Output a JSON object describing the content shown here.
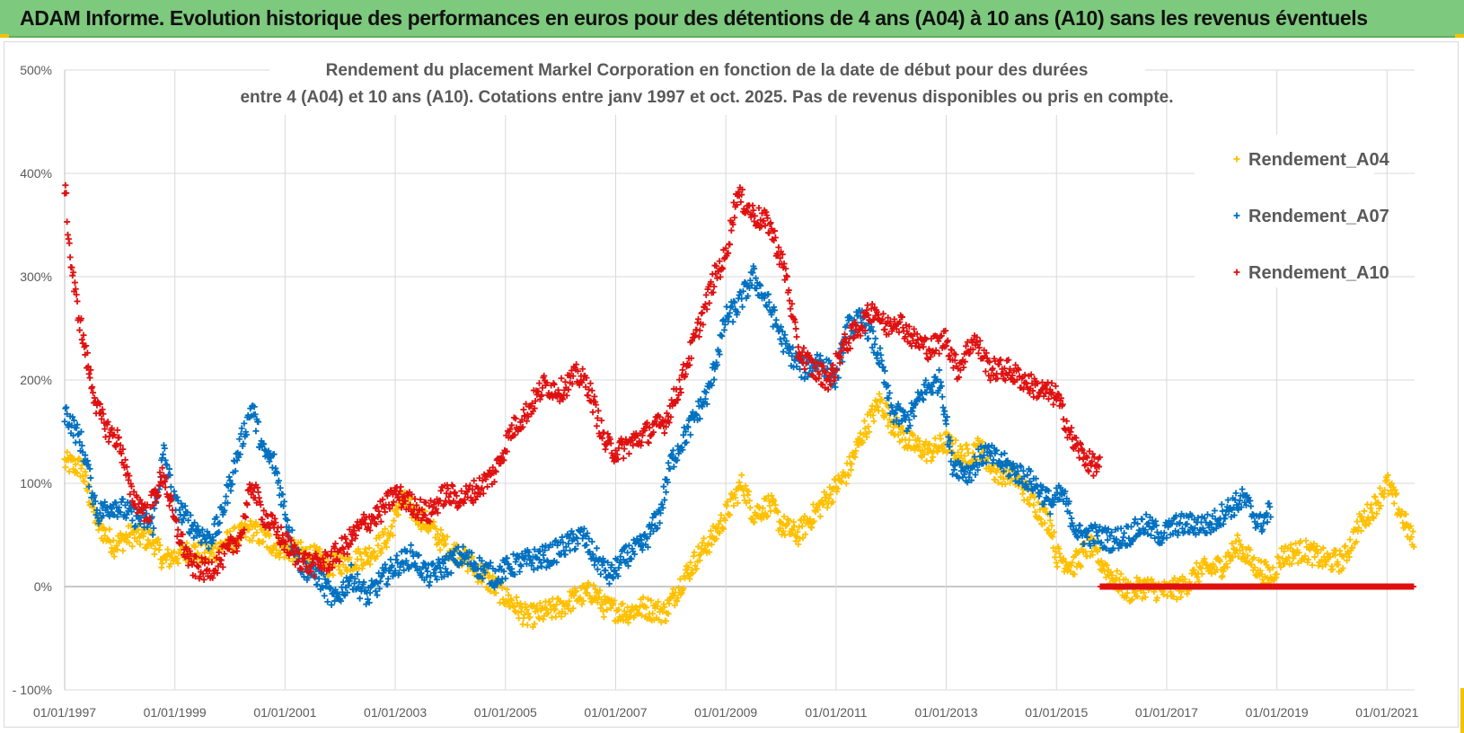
{
  "header": {
    "title": "ADAM Informe. Evolution historique des performances en euros pour des détentions de 4 ans (A04) à 10 ans (A10) sans les revenus éventuels"
  },
  "colors": {
    "header_bg": "#7dc97d",
    "accent": "#f2c200",
    "A04": "#ffc000",
    "A07": "#0070c0",
    "A10": "#e01010"
  },
  "chart_data": {
    "type": "scatter",
    "title_lines": [
      "Rendement du placement Markel Corporation en fonction de la date de début pour des durées",
      "entre 4 (A04) et 10 ans (A10). Cotations entre janv 1997 et oct. 2025. Pas de revenus disponibles ou pris en compte."
    ],
    "xlabel": "",
    "ylabel": "",
    "x_unit": "year",
    "xlim": [
      1997.0,
      2021.5
    ],
    "ylim": [
      -100,
      500
    ],
    "y_ticks": [
      -100,
      0,
      100,
      200,
      300,
      400,
      500
    ],
    "y_tick_labels": [
      "- 100%",
      "0%",
      "100%",
      "200%",
      "300%",
      "400%",
      "500%"
    ],
    "x_ticks": [
      1997,
      1999,
      2001,
      2003,
      2005,
      2007,
      2009,
      2011,
      2013,
      2015,
      2017,
      2019,
      2021
    ],
    "x_tick_labels": [
      "01/01/1997",
      "01/01/1999",
      "01/01/2001",
      "01/01/2003",
      "01/01/2005",
      "01/01/2007",
      "01/01/2009",
      "01/01/2011",
      "01/01/2013",
      "01/01/2015",
      "01/01/2017",
      "01/01/2019",
      "01/01/2021"
    ],
    "legend_position": "right",
    "grid": true,
    "marker": "+",
    "series": [
      {
        "name": "Rendement_A04",
        "color": "#ffc000",
        "points": [
          [
            1997.0,
            120
          ],
          [
            1997.3,
            115
          ],
          [
            1997.6,
            60
          ],
          [
            1997.9,
            40
          ],
          [
            1998.2,
            50
          ],
          [
            1998.6,
            45
          ],
          [
            1998.8,
            25
          ],
          [
            1999.0,
            30
          ],
          [
            1999.3,
            35
          ],
          [
            1999.6,
            30
          ],
          [
            2000.0,
            45
          ],
          [
            2000.4,
            55
          ],
          [
            2000.8,
            40
          ],
          [
            2001.1,
            35
          ],
          [
            2001.5,
            30
          ],
          [
            2001.8,
            20
          ],
          [
            2002.2,
            25
          ],
          [
            2002.5,
            30
          ],
          [
            2002.9,
            50
          ],
          [
            2003.1,
            85
          ],
          [
            2003.3,
            75
          ],
          [
            2003.6,
            60
          ],
          [
            2003.9,
            40
          ],
          [
            2004.2,
            30
          ],
          [
            2004.5,
            15
          ],
          [
            2004.8,
            0
          ],
          [
            2005.1,
            -15
          ],
          [
            2005.4,
            -30
          ],
          [
            2005.7,
            -25
          ],
          [
            2006.0,
            -20
          ],
          [
            2006.3,
            -10
          ],
          [
            2006.6,
            -5
          ],
          [
            2006.8,
            -20
          ],
          [
            2007.2,
            -25
          ],
          [
            2007.5,
            -20
          ],
          [
            2007.9,
            -25
          ],
          [
            2008.2,
            5
          ],
          [
            2008.5,
            30
          ],
          [
            2008.8,
            50
          ],
          [
            2009.0,
            70
          ],
          [
            2009.3,
            100
          ],
          [
            2009.5,
            70
          ],
          [
            2009.8,
            80
          ],
          [
            2010.0,
            60
          ],
          [
            2010.3,
            50
          ],
          [
            2010.6,
            70
          ],
          [
            2010.9,
            90
          ],
          [
            2011.2,
            110
          ],
          [
            2011.5,
            150
          ],
          [
            2011.8,
            180
          ],
          [
            2012.0,
            160
          ],
          [
            2012.3,
            140
          ],
          [
            2012.7,
            130
          ],
          [
            2013.0,
            140
          ],
          [
            2013.3,
            125
          ],
          [
            2013.6,
            135
          ],
          [
            2013.9,
            110
          ],
          [
            2014.2,
            110
          ],
          [
            2014.6,
            80
          ],
          [
            2014.9,
            60
          ],
          [
            2015.0,
            30
          ],
          [
            2015.3,
            20
          ],
          [
            2015.6,
            40
          ],
          [
            2015.8,
            25
          ],
          [
            2016.0,
            10
          ],
          [
            2016.3,
            -5
          ],
          [
            2016.6,
            0
          ],
          [
            2017.0,
            -5
          ],
          [
            2017.3,
            0
          ],
          [
            2017.6,
            15
          ],
          [
            2018.0,
            20
          ],
          [
            2018.3,
            40
          ],
          [
            2018.6,
            20
          ],
          [
            2018.9,
            10
          ],
          [
            2019.1,
            30
          ],
          [
            2019.5,
            35
          ],
          [
            2019.9,
            25
          ],
          [
            2020.2,
            25
          ],
          [
            2020.5,
            60
          ],
          [
            2020.8,
            80
          ],
          [
            2021.0,
            100
          ],
          [
            2021.3,
            65
          ],
          [
            2021.5,
            40
          ]
        ]
      },
      {
        "name": "Rendement_A07",
        "color": "#0070c0",
        "points": [
          [
            1997.0,
            170
          ],
          [
            1997.3,
            140
          ],
          [
            1997.6,
            70
          ],
          [
            1997.9,
            80
          ],
          [
            1998.2,
            70
          ],
          [
            1998.6,
            60
          ],
          [
            1998.8,
            130
          ],
          [
            1999.0,
            80
          ],
          [
            1999.3,
            60
          ],
          [
            1999.6,
            45
          ],
          [
            1999.8,
            60
          ],
          [
            2000.0,
            100
          ],
          [
            2000.2,
            140
          ],
          [
            2000.4,
            175
          ],
          [
            2000.6,
            130
          ],
          [
            2000.8,
            120
          ],
          [
            2001.1,
            50
          ],
          [
            2001.3,
            20
          ],
          [
            2001.6,
            10
          ],
          [
            2001.9,
            -15
          ],
          [
            2002.2,
            10
          ],
          [
            2002.5,
            -10
          ],
          [
            2002.8,
            10
          ],
          [
            2003.0,
            20
          ],
          [
            2003.3,
            30
          ],
          [
            2003.6,
            10
          ],
          [
            2003.9,
            20
          ],
          [
            2004.2,
            30
          ],
          [
            2004.5,
            20
          ],
          [
            2004.8,
            10
          ],
          [
            2005.1,
            20
          ],
          [
            2005.4,
            25
          ],
          [
            2005.8,
            30
          ],
          [
            2006.1,
            40
          ],
          [
            2006.4,
            50
          ],
          [
            2006.6,
            30
          ],
          [
            2006.9,
            10
          ],
          [
            2007.2,
            30
          ],
          [
            2007.5,
            40
          ],
          [
            2007.8,
            70
          ],
          [
            2008.0,
            120
          ],
          [
            2008.3,
            150
          ],
          [
            2008.5,
            170
          ],
          [
            2008.7,
            190
          ],
          [
            2009.0,
            260
          ],
          [
            2009.2,
            270
          ],
          [
            2009.5,
            300
          ],
          [
            2009.8,
            270
          ],
          [
            2010.1,
            230
          ],
          [
            2010.4,
            210
          ],
          [
            2010.7,
            220
          ],
          [
            2011.0,
            200
          ],
          [
            2011.2,
            250
          ],
          [
            2011.5,
            260
          ],
          [
            2011.8,
            220
          ],
          [
            2012.0,
            170
          ],
          [
            2012.3,
            160
          ],
          [
            2012.6,
            190
          ],
          [
            2012.9,
            200
          ],
          [
            2013.1,
            120
          ],
          [
            2013.4,
            110
          ],
          [
            2013.7,
            130
          ],
          [
            2014.0,
            120
          ],
          [
            2014.3,
            110
          ],
          [
            2014.6,
            100
          ],
          [
            2014.9,
            80
          ],
          [
            2015.1,
            90
          ],
          [
            2015.4,
            50
          ],
          [
            2015.7,
            50
          ],
          [
            2016.0,
            45
          ],
          [
            2016.3,
            50
          ],
          [
            2016.6,
            60
          ],
          [
            2016.9,
            50
          ],
          [
            2017.2,
            60
          ],
          [
            2017.5,
            60
          ],
          [
            2017.8,
            60
          ],
          [
            2018.1,
            75
          ],
          [
            2018.4,
            85
          ],
          [
            2018.7,
            60
          ],
          [
            2018.9,
            75
          ]
        ]
      },
      {
        "name": "Rendement_A10",
        "color": "#e01010",
        "points": [
          [
            1997.0,
            390
          ],
          [
            1997.1,
            320
          ],
          [
            1997.2,
            280
          ],
          [
            1997.3,
            250
          ],
          [
            1997.4,
            220
          ],
          [
            1997.6,
            170
          ],
          [
            1997.8,
            150
          ],
          [
            1998.0,
            140
          ],
          [
            1998.2,
            90
          ],
          [
            1998.5,
            70
          ],
          [
            1998.8,
            110
          ],
          [
            1999.0,
            60
          ],
          [
            1999.3,
            20
          ],
          [
            1999.6,
            15
          ],
          [
            1999.9,
            30
          ],
          [
            2000.2,
            50
          ],
          [
            2000.4,
            100
          ],
          [
            2000.6,
            70
          ],
          [
            2000.9,
            50
          ],
          [
            2001.2,
            30
          ],
          [
            2001.5,
            20
          ],
          [
            2001.8,
            25
          ],
          [
            2002.1,
            40
          ],
          [
            2002.4,
            60
          ],
          [
            2002.7,
            70
          ],
          [
            2003.0,
            90
          ],
          [
            2003.3,
            80
          ],
          [
            2003.6,
            70
          ],
          [
            2003.9,
            90
          ],
          [
            2004.2,
            85
          ],
          [
            2004.5,
            95
          ],
          [
            2004.8,
            110
          ],
          [
            2005.1,
            150
          ],
          [
            2005.4,
            170
          ],
          [
            2005.7,
            195
          ],
          [
            2006.0,
            190
          ],
          [
            2006.3,
            205
          ],
          [
            2006.5,
            195
          ],
          [
            2006.8,
            140
          ],
          [
            2007.0,
            130
          ],
          [
            2007.3,
            140
          ],
          [
            2007.6,
            150
          ],
          [
            2007.9,
            160
          ],
          [
            2008.2,
            200
          ],
          [
            2008.5,
            250
          ],
          [
            2008.8,
            300
          ],
          [
            2009.0,
            320
          ],
          [
            2009.2,
            380
          ],
          [
            2009.5,
            360
          ],
          [
            2009.8,
            350
          ],
          [
            2010.1,
            300
          ],
          [
            2010.3,
            230
          ],
          [
            2010.6,
            210
          ],
          [
            2010.9,
            200
          ],
          [
            2011.1,
            230
          ],
          [
            2011.4,
            250
          ],
          [
            2011.7,
            270
          ],
          [
            2011.9,
            250
          ],
          [
            2012.1,
            260
          ],
          [
            2012.4,
            240
          ],
          [
            2012.7,
            230
          ],
          [
            2013.0,
            240
          ],
          [
            2013.2,
            210
          ],
          [
            2013.5,
            240
          ],
          [
            2013.8,
            210
          ],
          [
            2014.1,
            210
          ],
          [
            2014.4,
            200
          ],
          [
            2014.7,
            190
          ],
          [
            2015.0,
            185
          ],
          [
            2015.3,
            140
          ],
          [
            2015.6,
            120
          ],
          [
            2015.8,
            115
          ]
        ]
      },
      {
        "name": "Rendement_A10",
        "color": "#e01010",
        "note": "flat segment",
        "points": [
          [
            2015.8,
            0
          ],
          [
            2021.5,
            0
          ]
        ]
      }
    ]
  }
}
